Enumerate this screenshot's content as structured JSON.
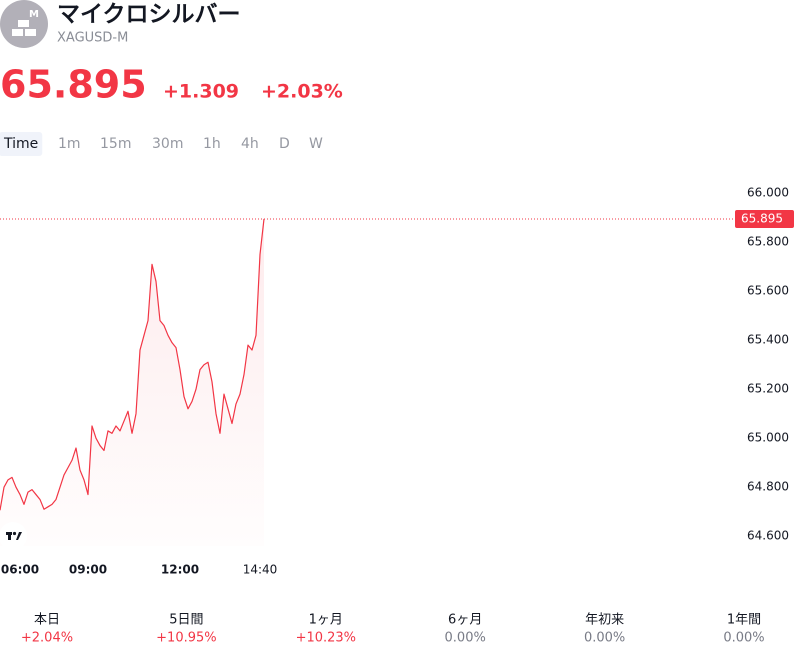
{
  "header": {
    "title": "マイクロシルバー",
    "symbol": "XAGUSD-M",
    "price": "65.895",
    "change": "+1.309",
    "change_pct": "+2.03%"
  },
  "timeframes": [
    "Time",
    "1m",
    "15m",
    "30m",
    "1h",
    "4h",
    "D",
    "W"
  ],
  "active_timeframe": 0,
  "chart_data": {
    "type": "line",
    "color": "#f23645",
    "categories": [
      null,
      null,
      null,
      null,
      null,
      "06:00",
      null,
      null,
      null,
      null,
      null,
      null,
      null,
      null,
      null,
      null,
      null,
      null,
      null,
      null,
      null,
      null,
      "09:00",
      null,
      null,
      null,
      null,
      null,
      null,
      null,
      null,
      null,
      null,
      null,
      null,
      null,
      null,
      null,
      null,
      null,
      null,
      null,
      null,
      null,
      null,
      "12:00",
      null,
      null,
      null,
      null,
      null,
      null,
      null,
      null,
      null,
      null,
      null,
      null,
      null,
      null,
      null,
      null,
      null,
      null,
      null,
      "14:40",
      null
    ],
    "values": [
      64.706,
      64.8,
      64.83,
      64.84,
      64.8,
      64.77,
      64.73,
      64.78,
      64.79,
      64.77,
      64.75,
      64.71,
      64.72,
      64.73,
      64.75,
      64.8,
      64.85,
      64.88,
      64.91,
      64.96,
      64.87,
      64.83,
      64.77,
      65.05,
      65.0,
      64.97,
      64.95,
      65.03,
      65.02,
      65.05,
      65.03,
      65.07,
      65.11,
      65.02,
      65.1,
      65.36,
      65.42,
      65.48,
      65.71,
      65.64,
      65.48,
      65.46,
      65.42,
      65.39,
      65.37,
      65.28,
      65.17,
      65.12,
      65.15,
      65.2,
      65.28,
      65.3,
      65.31,
      65.23,
      65.1,
      65.02,
      65.18,
      65.12,
      65.06,
      65.14,
      65.18,
      65.26,
      65.38,
      65.36,
      65.42,
      65.75,
      65.895
    ],
    "last_price": 65.895,
    "ylim": [
      64.56,
      66.05
    ],
    "yticks": [
      {
        "value": 64.6,
        "label": "64.600"
      },
      {
        "value": 64.8,
        "label": "64.800"
      },
      {
        "value": 65.0,
        "label": "65.000"
      },
      {
        "value": 65.2,
        "label": "65.200"
      },
      {
        "value": 65.4,
        "label": "65.400"
      },
      {
        "value": 65.6,
        "label": "65.600"
      },
      {
        "value": 65.8,
        "label": "65.800"
      },
      {
        "value": 66.0,
        "label": "66.000"
      }
    ],
    "grid": false
  },
  "periods": [
    {
      "label": "本日",
      "value": "+2.04%"
    },
    {
      "label": "5日間",
      "value": "+10.95%"
    },
    {
      "label": "1ヶ月",
      "value": "+10.23%"
    },
    {
      "label": "6ヶ月",
      "value": "0.00%"
    },
    {
      "label": "年初来",
      "value": "0.00%"
    },
    {
      "label": "1年間",
      "value": "0.00%"
    }
  ]
}
